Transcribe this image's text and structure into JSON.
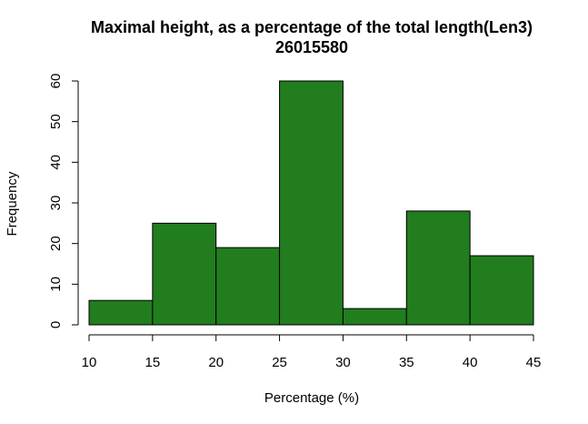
{
  "chart_data": {
    "type": "bar",
    "title": "Maximal height, as a percentage of the total length(Len3)",
    "subtitle": "26015580",
    "xlabel": "Percentage (%)",
    "ylabel": "Frequency",
    "bins": [
      {
        "from": 10,
        "to": 15,
        "value": 6
      },
      {
        "from": 15,
        "to": 20,
        "value": 25
      },
      {
        "from": 20,
        "to": 25,
        "value": 19
      },
      {
        "from": 25,
        "to": 30,
        "value": 60
      },
      {
        "from": 30,
        "to": 35,
        "value": 4
      },
      {
        "from": 35,
        "to": 40,
        "value": 28
      },
      {
        "from": 40,
        "to": 45,
        "value": 17
      }
    ],
    "xticks": [
      "10",
      "15",
      "20",
      "25",
      "30",
      "35",
      "40",
      "45"
    ],
    "yticks": [
      "0",
      "10",
      "20",
      "30",
      "40",
      "50",
      "60"
    ],
    "xlim": [
      10,
      45
    ],
    "ylim": [
      0,
      60
    ],
    "bar_color": "#217D1E",
    "grid": false
  }
}
